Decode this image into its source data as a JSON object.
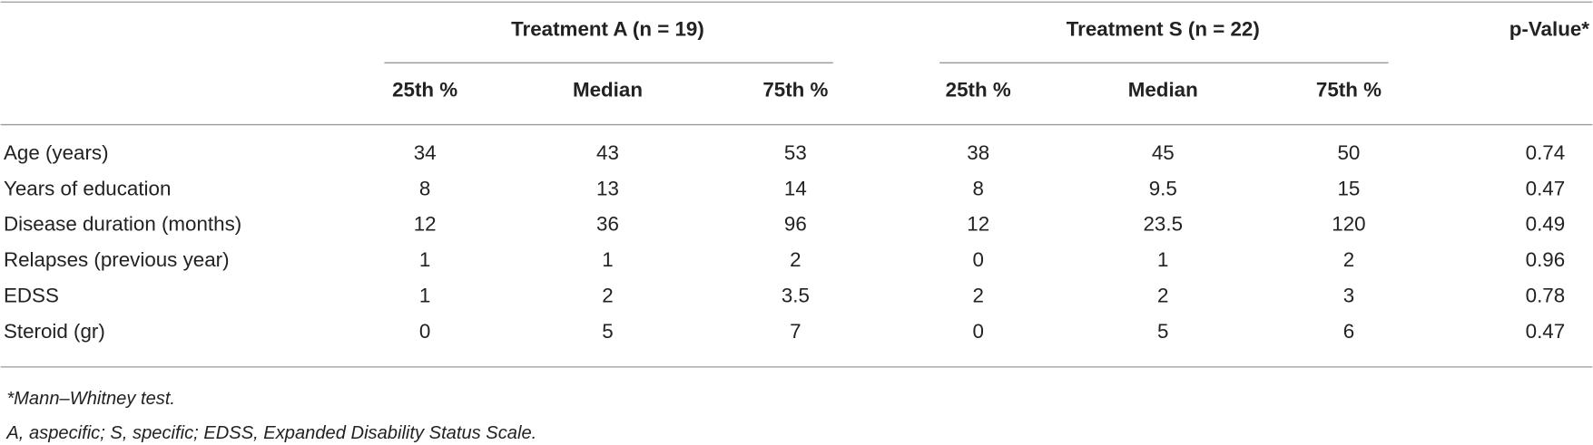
{
  "table": {
    "groups": [
      "Treatment A (n = 19)",
      "Treatment S (n = 22)"
    ],
    "p_header": "p-Value*",
    "subheaders": [
      "25th %",
      "Median",
      "75th %",
      "25th %",
      "Median",
      "75th %"
    ],
    "rows": [
      {
        "label": "Age (years)",
        "cells": [
          34,
          43,
          53,
          38,
          45,
          50
        ],
        "p": 0.74
      },
      {
        "label": "Years of education",
        "cells": [
          8,
          13,
          14,
          8,
          9.5,
          15
        ],
        "p": 0.47
      },
      {
        "label": "Disease duration (months)",
        "cells": [
          12,
          36,
          96,
          12,
          23.5,
          120
        ],
        "p": 0.49
      },
      {
        "label": "Relapses (previous year)",
        "cells": [
          1,
          1,
          2,
          0,
          1,
          2
        ],
        "p": 0.96
      },
      {
        "label": "EDSS",
        "cells": [
          1,
          2,
          3.5,
          2,
          2,
          3
        ],
        "p": 0.78
      },
      {
        "label": "Steroid (gr)",
        "cells": [
          0,
          5,
          7,
          0,
          5,
          6
        ],
        "p": 0.47
      }
    ],
    "footnotes": [
      "*Mann–Whitney test.",
      "A, aspecific; S, specific; EDSS, Expanded Disability Status Scale."
    ]
  }
}
